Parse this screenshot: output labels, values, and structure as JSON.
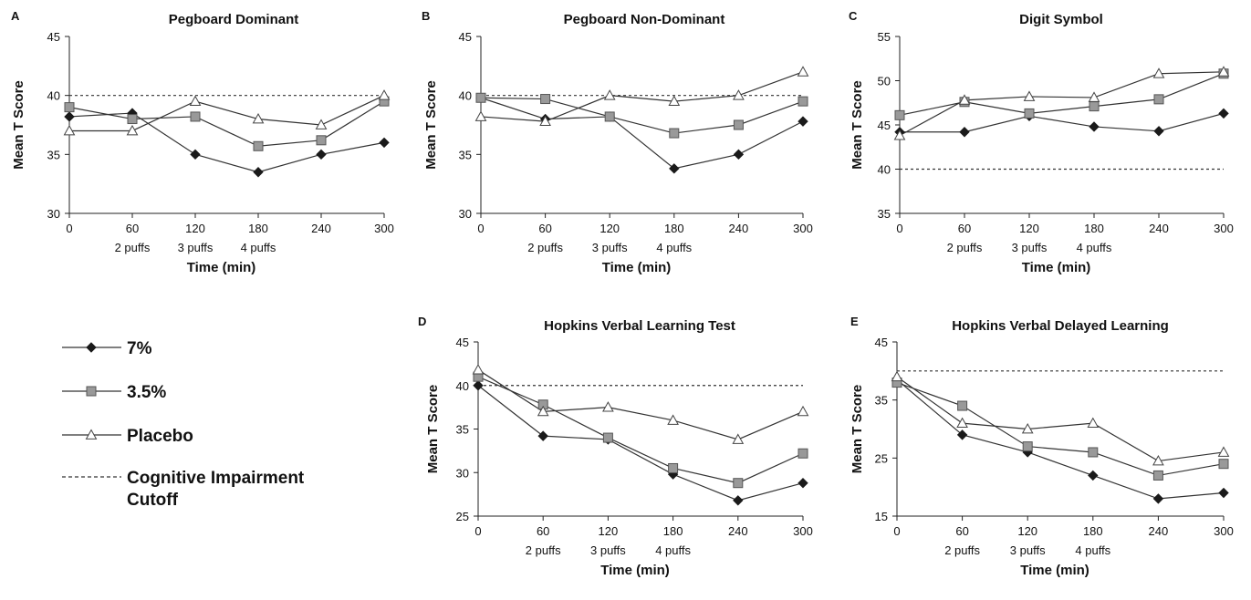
{
  "figure": {
    "legend": {
      "entries": [
        {
          "label": "7%",
          "marker": "diamond"
        },
        {
          "label": "3.5%",
          "marker": "square"
        },
        {
          "label": "Placebo",
          "marker": "triangle"
        },
        {
          "label": "Cognitive Impairment",
          "label2": "Cutoff",
          "marker": "dashed"
        }
      ]
    },
    "colors": {
      "line": "#333333",
      "diamond_fill": "#1a1a1a",
      "square_fill": "#999999",
      "triangle_fill": "#ffffff",
      "cutoff": "#333333"
    }
  },
  "chart_data": [
    {
      "letter": "A",
      "title": "Pegboard Dominant",
      "type": "line",
      "xlabel": "Time (min)",
      "ylabel": "Mean T Score",
      "x": [
        0,
        60,
        120,
        180,
        240,
        300
      ],
      "x_puffs": [
        "",
        "2 puffs",
        "3 puffs",
        "4 puffs",
        "",
        ""
      ],
      "ylim": [
        30,
        45
      ],
      "yticks": [
        30,
        35,
        40,
        45
      ],
      "cutoff": 40,
      "series": [
        {
          "name": "7%",
          "marker": "diamond",
          "values": [
            38.2,
            38.5,
            35.0,
            33.5,
            35.0,
            36.0
          ]
        },
        {
          "name": "3.5%",
          "marker": "square",
          "values": [
            39.0,
            38.0,
            38.2,
            35.7,
            36.2,
            39.5
          ]
        },
        {
          "name": "Placebo",
          "marker": "triangle",
          "values": [
            37.0,
            37.0,
            39.5,
            38.0,
            37.5,
            40.0
          ]
        }
      ]
    },
    {
      "letter": "B",
      "title": "Pegboard Non-Dominant",
      "type": "line",
      "xlabel": "Time (min)",
      "ylabel": "Mean T Score",
      "x": [
        0,
        60,
        120,
        180,
        240,
        300
      ],
      "x_puffs": [
        "",
        "2 puffs",
        "3 puffs",
        "4 puffs",
        "",
        ""
      ],
      "ylim": [
        30,
        45
      ],
      "yticks": [
        30,
        35,
        40,
        45
      ],
      "cutoff": 40,
      "series": [
        {
          "name": "7%",
          "marker": "diamond",
          "values": [
            39.8,
            38.0,
            38.2,
            33.8,
            35.0,
            37.8
          ]
        },
        {
          "name": "3.5%",
          "marker": "square",
          "values": [
            39.8,
            39.7,
            38.2,
            36.8,
            37.5,
            39.5
          ]
        },
        {
          "name": "Placebo",
          "marker": "triangle",
          "values": [
            38.2,
            37.8,
            40.0,
            39.5,
            40.0,
            42.0
          ]
        }
      ]
    },
    {
      "letter": "C",
      "title": "Digit Symbol",
      "type": "line",
      "xlabel": "Time (min)",
      "ylabel": "Mean T Score",
      "x": [
        0,
        60,
        120,
        180,
        240,
        300
      ],
      "x_puffs": [
        "",
        "2 puffs",
        "3 puffs",
        "4 puffs",
        "",
        ""
      ],
      "ylim": [
        35,
        55
      ],
      "yticks": [
        35,
        40,
        45,
        50,
        55
      ],
      "cutoff": 40,
      "series": [
        {
          "name": "7%",
          "marker": "diamond",
          "values": [
            44.2,
            44.2,
            46.0,
            44.8,
            44.3,
            46.3
          ]
        },
        {
          "name": "3.5%",
          "marker": "square",
          "values": [
            46.1,
            47.6,
            46.3,
            47.1,
            47.9,
            50.8
          ]
        },
        {
          "name": "Placebo",
          "marker": "triangle",
          "values": [
            43.8,
            47.8,
            48.2,
            48.1,
            50.8,
            51.0
          ]
        }
      ]
    },
    {
      "letter": "D",
      "title": "Hopkins Verbal Learning Test",
      "type": "line",
      "xlabel": "Time (min)",
      "ylabel": "Mean T Score",
      "x": [
        0,
        60,
        120,
        180,
        240,
        300
      ],
      "x_puffs": [
        "",
        "2 puffs",
        "3 puffs",
        "4 puffs",
        "",
        ""
      ],
      "ylim": [
        25,
        45
      ],
      "yticks": [
        25,
        30,
        35,
        40,
        45
      ],
      "cutoff": 40,
      "series": [
        {
          "name": "7%",
          "marker": "diamond",
          "values": [
            40.0,
            34.2,
            33.8,
            29.8,
            26.8,
            28.8
          ]
        },
        {
          "name": "3.5%",
          "marker": "square",
          "values": [
            41.0,
            37.8,
            34.0,
            30.5,
            28.8,
            32.2
          ]
        },
        {
          "name": "Placebo",
          "marker": "triangle",
          "values": [
            41.8,
            37.0,
            37.5,
            36.0,
            33.8,
            37.0
          ]
        }
      ]
    },
    {
      "letter": "E",
      "title": "Hopkins Verbal Delayed Learning",
      "type": "line",
      "xlabel": "Time (min)",
      "ylabel": "Mean T Score",
      "x": [
        0,
        60,
        120,
        180,
        240,
        300
      ],
      "x_puffs": [
        "",
        "2 puffs",
        "3 puffs",
        "4 puffs",
        "",
        ""
      ],
      "ylim": [
        15,
        45
      ],
      "yticks": [
        15,
        25,
        35,
        45
      ],
      "cutoff": 40,
      "series": [
        {
          "name": "7%",
          "marker": "diamond",
          "values": [
            38.5,
            29.0,
            26.0,
            22.0,
            18.0,
            19.0
          ]
        },
        {
          "name": "3.5%",
          "marker": "square",
          "values": [
            38.0,
            34.0,
            27.0,
            26.0,
            22.0,
            24.0
          ]
        },
        {
          "name": "Placebo",
          "marker": "triangle",
          "values": [
            39.0,
            31.0,
            30.0,
            31.0,
            24.5,
            26.0
          ]
        }
      ]
    }
  ]
}
